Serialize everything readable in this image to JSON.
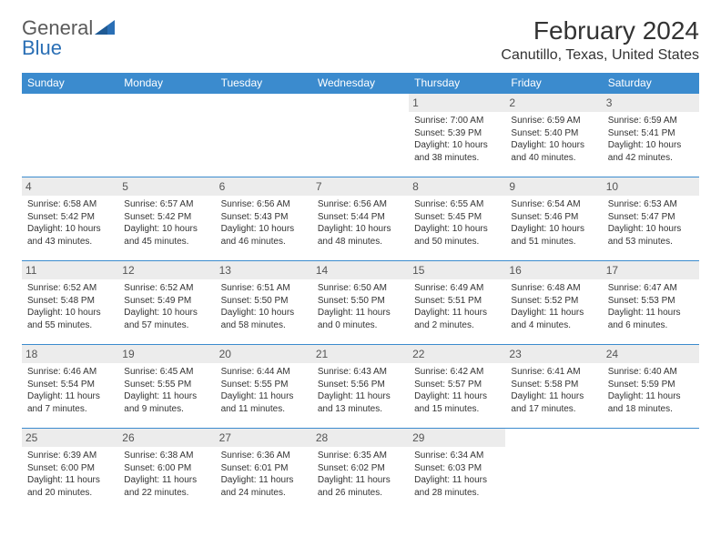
{
  "logo": {
    "word1": "General",
    "word2": "Blue"
  },
  "title": "February 2024",
  "location": "Canutillo, Texas, United States",
  "colors": {
    "header_bg": "#3b8bce",
    "header_text": "#ffffff",
    "border": "#3b8bce",
    "daynum_bg": "#ececec",
    "body_text": "#333333",
    "logo_gray": "#5a5a5a",
    "logo_blue": "#2a6fb5",
    "page_bg": "#ffffff"
  },
  "weekdays": [
    "Sunday",
    "Monday",
    "Tuesday",
    "Wednesday",
    "Thursday",
    "Friday",
    "Saturday"
  ],
  "weeks": [
    [
      null,
      null,
      null,
      null,
      {
        "d": "1",
        "sr": "Sunrise: 7:00 AM",
        "ss": "Sunset: 5:39 PM",
        "dl": "Daylight: 10 hours and 38 minutes."
      },
      {
        "d": "2",
        "sr": "Sunrise: 6:59 AM",
        "ss": "Sunset: 5:40 PM",
        "dl": "Daylight: 10 hours and 40 minutes."
      },
      {
        "d": "3",
        "sr": "Sunrise: 6:59 AM",
        "ss": "Sunset: 5:41 PM",
        "dl": "Daylight: 10 hours and 42 minutes."
      }
    ],
    [
      {
        "d": "4",
        "sr": "Sunrise: 6:58 AM",
        "ss": "Sunset: 5:42 PM",
        "dl": "Daylight: 10 hours and 43 minutes."
      },
      {
        "d": "5",
        "sr": "Sunrise: 6:57 AM",
        "ss": "Sunset: 5:42 PM",
        "dl": "Daylight: 10 hours and 45 minutes."
      },
      {
        "d": "6",
        "sr": "Sunrise: 6:56 AM",
        "ss": "Sunset: 5:43 PM",
        "dl": "Daylight: 10 hours and 46 minutes."
      },
      {
        "d": "7",
        "sr": "Sunrise: 6:56 AM",
        "ss": "Sunset: 5:44 PM",
        "dl": "Daylight: 10 hours and 48 minutes."
      },
      {
        "d": "8",
        "sr": "Sunrise: 6:55 AM",
        "ss": "Sunset: 5:45 PM",
        "dl": "Daylight: 10 hours and 50 minutes."
      },
      {
        "d": "9",
        "sr": "Sunrise: 6:54 AM",
        "ss": "Sunset: 5:46 PM",
        "dl": "Daylight: 10 hours and 51 minutes."
      },
      {
        "d": "10",
        "sr": "Sunrise: 6:53 AM",
        "ss": "Sunset: 5:47 PM",
        "dl": "Daylight: 10 hours and 53 minutes."
      }
    ],
    [
      {
        "d": "11",
        "sr": "Sunrise: 6:52 AM",
        "ss": "Sunset: 5:48 PM",
        "dl": "Daylight: 10 hours and 55 minutes."
      },
      {
        "d": "12",
        "sr": "Sunrise: 6:52 AM",
        "ss": "Sunset: 5:49 PM",
        "dl": "Daylight: 10 hours and 57 minutes."
      },
      {
        "d": "13",
        "sr": "Sunrise: 6:51 AM",
        "ss": "Sunset: 5:50 PM",
        "dl": "Daylight: 10 hours and 58 minutes."
      },
      {
        "d": "14",
        "sr": "Sunrise: 6:50 AM",
        "ss": "Sunset: 5:50 PM",
        "dl": "Daylight: 11 hours and 0 minutes."
      },
      {
        "d": "15",
        "sr": "Sunrise: 6:49 AM",
        "ss": "Sunset: 5:51 PM",
        "dl": "Daylight: 11 hours and 2 minutes."
      },
      {
        "d": "16",
        "sr": "Sunrise: 6:48 AM",
        "ss": "Sunset: 5:52 PM",
        "dl": "Daylight: 11 hours and 4 minutes."
      },
      {
        "d": "17",
        "sr": "Sunrise: 6:47 AM",
        "ss": "Sunset: 5:53 PM",
        "dl": "Daylight: 11 hours and 6 minutes."
      }
    ],
    [
      {
        "d": "18",
        "sr": "Sunrise: 6:46 AM",
        "ss": "Sunset: 5:54 PM",
        "dl": "Daylight: 11 hours and 7 minutes."
      },
      {
        "d": "19",
        "sr": "Sunrise: 6:45 AM",
        "ss": "Sunset: 5:55 PM",
        "dl": "Daylight: 11 hours and 9 minutes."
      },
      {
        "d": "20",
        "sr": "Sunrise: 6:44 AM",
        "ss": "Sunset: 5:55 PM",
        "dl": "Daylight: 11 hours and 11 minutes."
      },
      {
        "d": "21",
        "sr": "Sunrise: 6:43 AM",
        "ss": "Sunset: 5:56 PM",
        "dl": "Daylight: 11 hours and 13 minutes."
      },
      {
        "d": "22",
        "sr": "Sunrise: 6:42 AM",
        "ss": "Sunset: 5:57 PM",
        "dl": "Daylight: 11 hours and 15 minutes."
      },
      {
        "d": "23",
        "sr": "Sunrise: 6:41 AM",
        "ss": "Sunset: 5:58 PM",
        "dl": "Daylight: 11 hours and 17 minutes."
      },
      {
        "d": "24",
        "sr": "Sunrise: 6:40 AM",
        "ss": "Sunset: 5:59 PM",
        "dl": "Daylight: 11 hours and 18 minutes."
      }
    ],
    [
      {
        "d": "25",
        "sr": "Sunrise: 6:39 AM",
        "ss": "Sunset: 6:00 PM",
        "dl": "Daylight: 11 hours and 20 minutes."
      },
      {
        "d": "26",
        "sr": "Sunrise: 6:38 AM",
        "ss": "Sunset: 6:00 PM",
        "dl": "Daylight: 11 hours and 22 minutes."
      },
      {
        "d": "27",
        "sr": "Sunrise: 6:36 AM",
        "ss": "Sunset: 6:01 PM",
        "dl": "Daylight: 11 hours and 24 minutes."
      },
      {
        "d": "28",
        "sr": "Sunrise: 6:35 AM",
        "ss": "Sunset: 6:02 PM",
        "dl": "Daylight: 11 hours and 26 minutes."
      },
      {
        "d": "29",
        "sr": "Sunrise: 6:34 AM",
        "ss": "Sunset: 6:03 PM",
        "dl": "Daylight: 11 hours and 28 minutes."
      },
      null,
      null
    ]
  ]
}
